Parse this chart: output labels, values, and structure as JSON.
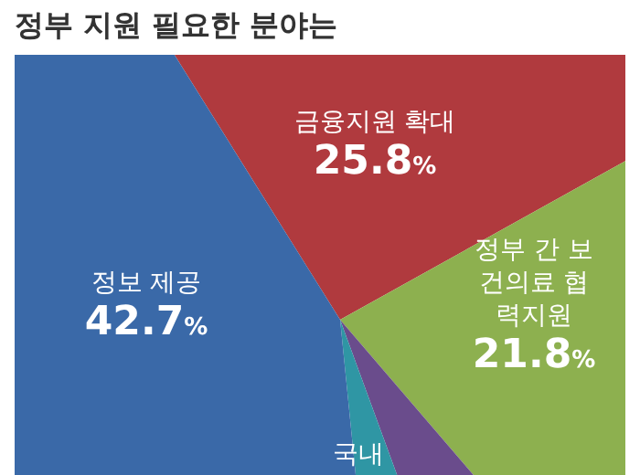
{
  "chart_data": {
    "type": "pie",
    "title": "정부 지원 필요한 분야는",
    "categories": [
      "금융지원 확대",
      "정부 간 보건의료 협력지원",
      null,
      "국내",
      "정보 제공"
    ],
    "values": [
      25.8,
      21.8,
      5.7,
      4.0,
      42.7
    ],
    "colors": [
      "#b03a3e",
      "#8db04f",
      "#6a4c8c",
      "#2f96a4",
      "#3a69a8"
    ],
    "value_labels": [
      "25.8%",
      "21.8%",
      null,
      null,
      "42.7%"
    ]
  }
}
